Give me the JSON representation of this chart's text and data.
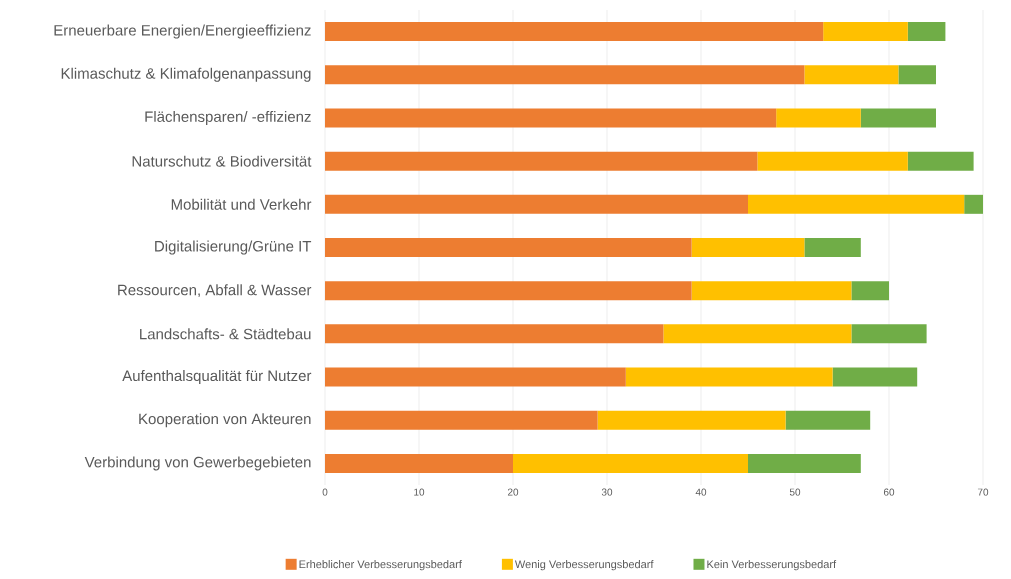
{
  "chart_data": {
    "type": "bar",
    "orientation": "horizontal",
    "stacked": true,
    "categories": [
      "Erneuerbare Energien/Energieeffizienz",
      "Klimaschutz & Klimafolgenanpassung",
      "Flächensparen/ -effizienz",
      "Naturschutz & Biodiversität",
      "Mobilität und Verkehr",
      "Digitalisierung/Grüne IT",
      "Ressourcen, Abfall & Wasser",
      "Landschafts- & Städtebau",
      "Aufenthalsqualität für Nutzer",
      "Kooperation von Akteuren",
      "Verbindung von Gewerbegebieten"
    ],
    "series": [
      {
        "name": "Erheblicher Verbesserungsbedarf",
        "color": "#ed7d31",
        "values": [
          53,
          51,
          48,
          46,
          45,
          39,
          39,
          36,
          32,
          29,
          20
        ]
      },
      {
        "name": "Wenig Verbesserungsbedarf",
        "color": "#ffc000",
        "values": [
          9,
          10,
          9,
          16,
          23,
          12,
          17,
          20,
          22,
          20,
          25
        ]
      },
      {
        "name": "Kein Verbesserungsbedarf",
        "color": "#70ad47",
        "values": [
          4,
          4,
          8,
          7,
          2,
          6,
          4,
          8,
          9,
          9,
          12
        ]
      }
    ],
    "xlim": [
      0,
      70
    ],
    "xticks": [
      0,
      10,
      20,
      30,
      40,
      50,
      60,
      70
    ],
    "grid": "x",
    "legend": "bottom"
  }
}
